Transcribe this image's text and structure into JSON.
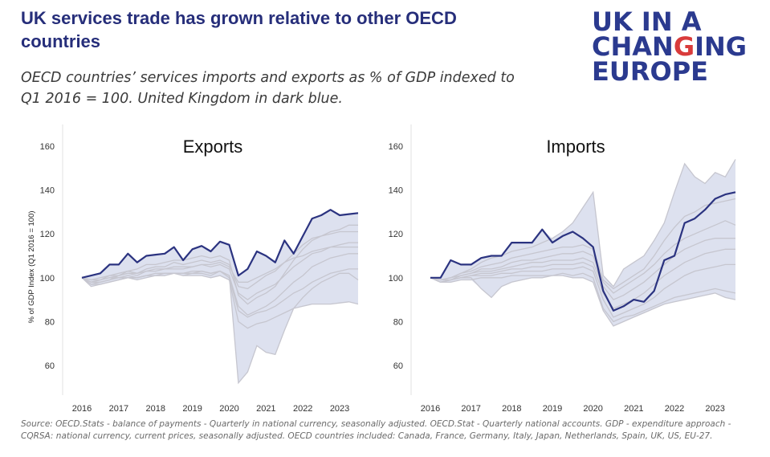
{
  "header": {
    "title": "UK services trade has grown relative to other OECD countries",
    "subtitle": "OECD countries’ services imports and exports as % of GDP indexed to Q1 2016 = 100. United Kingdom in dark blue."
  },
  "logo": {
    "lines": [
      "UK IN A",
      "CHANGING",
      "EUROPE"
    ],
    "highlight_letters": "G",
    "color": "#2b3a8f",
    "highlight_color": "#d93b3b"
  },
  "colors": {
    "uk_line": "#2b3380",
    "band_fill": "#dde1ef",
    "other_lines": "#c6c6cf",
    "axis_text": "#333333"
  },
  "footer": {
    "source": "Source: OECD.Stats - balance of payments - Quarterly in national currency,  seasonally adjusted. OECD.Stat - Quarterly national accounts. GDP - expenditure approach - CQRSA: national currency, current prices, seasonally adjusted.  OECD countries included: Canada, France, Germany, Italy, Japan, Netherlands, Spain, UK, US, EU-27."
  },
  "chart_data": [
    {
      "type": "line",
      "title": "Exports",
      "ylabel": "% of GDP Index (Q1 2016 = 100)",
      "xlabel": "",
      "ylim": [
        50,
        163
      ],
      "yticks": [
        60,
        80,
        100,
        120,
        140,
        160
      ],
      "xticks": [
        "2016",
        "2017",
        "2018",
        "2019",
        "2020",
        "2021",
        "2022",
        "2023"
      ],
      "x": [
        2016.0,
        2016.25,
        2016.5,
        2016.75,
        2017.0,
        2017.25,
        2017.5,
        2017.75,
        2018.0,
        2018.25,
        2018.5,
        2018.75,
        2019.0,
        2019.25,
        2019.5,
        2019.75,
        2020.0,
        2020.25,
        2020.5,
        2020.75,
        2021.0,
        2021.25,
        2021.5,
        2021.75,
        2022.0,
        2022.25,
        2022.5,
        2022.75,
        2023.0,
        2023.25,
        2023.5
      ],
      "series": [
        {
          "values": [
            100,
            101,
            102,
            106,
            106,
            111,
            107,
            110,
            110.5,
            111,
            114,
            108,
            113,
            114.5,
            112,
            116.5,
            115,
            101,
            104,
            112,
            110,
            107,
            117,
            111,
            119,
            127,
            128.5,
            131,
            128.5,
            129,
            129.5
          ],
          "role": "uk"
        },
        {
          "values": [
            100,
            97,
            98,
            99,
            101,
            103,
            104,
            106,
            106,
            107,
            108,
            108,
            109,
            110,
            109,
            110,
            108,
            92,
            88,
            91,
            93,
            96,
            102,
            108,
            113,
            117,
            119,
            121,
            122,
            124,
            124
          ]
        },
        {
          "values": [
            100,
            98,
            99,
            101,
            102,
            103,
            102,
            104,
            105,
            105,
            107,
            106,
            107,
            108,
            107,
            108,
            106,
            96,
            95,
            98,
            101,
            103,
            107,
            111,
            115,
            118,
            119,
            120,
            121,
            121,
            121
          ]
        },
        {
          "values": [
            100,
            99,
            100,
            101,
            101,
            102,
            101,
            103,
            103,
            104,
            104,
            104,
            105,
            106,
            105,
            106,
            104,
            93,
            90,
            93,
            95,
            97,
            101,
            105,
            108,
            111,
            112,
            114,
            115,
            116,
            116
          ]
        },
        {
          "values": [
            100,
            97,
            97,
            98,
            99,
            100,
            99,
            100,
            101,
            101,
            102,
            101,
            102,
            102,
            101,
            103,
            101,
            87,
            83,
            85,
            87,
            90,
            94,
            98,
            101,
            105,
            107,
            109,
            110,
            111,
            111
          ]
        },
        {
          "values": [
            100,
            98,
            99,
            100,
            101,
            102,
            102,
            103,
            104,
            104,
            105,
            105,
            105,
            106,
            106,
            107,
            105,
            98,
            98,
            100,
            102,
            104,
            107,
            109,
            110,
            112,
            113,
            114,
            114,
            114,
            114
          ]
        },
        {
          "values": [
            100,
            99,
            99,
            100,
            100,
            101,
            100,
            101,
            101,
            102,
            102,
            102,
            102,
            103,
            102,
            103,
            100,
            85,
            82,
            84,
            85,
            87,
            90,
            93,
            95,
            98,
            100,
            102,
            103,
            104,
            104
          ]
        },
        {
          "values": [
            100,
            98,
            98,
            99,
            100,
            100,
            100,
            101,
            101,
            101,
            102,
            101,
            101,
            101,
            100,
            101,
            99,
            80,
            77,
            79,
            80,
            82,
            84,
            86,
            87,
            88,
            88,
            88,
            88.5,
            89,
            88
          ]
        },
        {
          "values": [
            100,
            96,
            97,
            98,
            99,
            100,
            100,
            101,
            102,
            102,
            102,
            102,
            103,
            103,
            102,
            103,
            101,
            52,
            57,
            69,
            66,
            65,
            76,
            86,
            91,
            95,
            98,
            100,
            102,
            102,
            99
          ]
        }
      ]
    },
    {
      "type": "line",
      "title": "Imports",
      "ylabel": "",
      "xlabel": "",
      "ylim": [
        50,
        163
      ],
      "yticks": [
        60,
        80,
        100,
        120,
        140,
        160
      ],
      "xticks": [
        "2016",
        "2017",
        "2018",
        "2019",
        "2020",
        "2021",
        "2022",
        "2023"
      ],
      "x": [
        2016.0,
        2016.25,
        2016.5,
        2016.75,
        2017.0,
        2017.25,
        2017.5,
        2017.75,
        2018.0,
        2018.25,
        2018.5,
        2018.75,
        2019.0,
        2019.25,
        2019.5,
        2019.75,
        2020.0,
        2020.25,
        2020.5,
        2020.75,
        2021.0,
        2021.25,
        2021.5,
        2021.75,
        2022.0,
        2022.25,
        2022.5,
        2022.75,
        2023.0,
        2023.25,
        2023.5
      ],
      "series": [
        {
          "values": [
            100,
            100,
            108,
            106,
            106,
            109,
            110,
            110,
            116,
            116,
            116,
            122,
            116,
            119,
            121,
            118,
            114,
            94,
            85,
            87,
            90,
            89,
            94,
            108,
            110,
            125,
            127,
            131,
            136,
            138,
            139
          ],
          "role": "uk"
        },
        {
          "values": [
            100,
            99,
            100,
            102,
            103,
            105,
            106,
            107,
            109,
            110,
            111,
            112,
            113,
            114,
            114,
            115,
            113,
            99,
            95,
            98,
            101,
            104,
            110,
            117,
            123,
            128,
            130,
            133,
            134,
            135,
            136
          ]
        },
        {
          "values": [
            100,
            98,
            99,
            101,
            102,
            104,
            104,
            105,
            107,
            108,
            108,
            109,
            110,
            111,
            111,
            112,
            110,
            98,
            93,
            96,
            99,
            102,
            106,
            111,
            115,
            118,
            120,
            122,
            124,
            126,
            124
          ]
        },
        {
          "values": [
            100,
            99,
            100,
            101,
            102,
            103,
            103,
            104,
            105,
            106,
            107,
            107,
            108,
            108,
            108,
            109,
            107,
            96,
            90,
            92,
            95,
            98,
            102,
            106,
            110,
            113,
            115,
            117,
            118,
            118,
            118
          ]
        },
        {
          "values": [
            100,
            98,
            99,
            100,
            101,
            102,
            102,
            103,
            104,
            104,
            105,
            105,
            106,
            106,
            106,
            107,
            105,
            93,
            86,
            88,
            90,
            93,
            97,
            101,
            104,
            107,
            109,
            111,
            112,
            113,
            113
          ]
        },
        {
          "values": [
            100,
            99,
            99,
            100,
            101,
            101,
            101,
            102,
            102,
            103,
            103,
            103,
            104,
            104,
            104,
            105,
            103,
            90,
            82,
            84,
            86,
            88,
            91,
            95,
            98,
            101,
            103,
            104,
            105,
            106,
            106
          ]
        },
        {
          "values": [
            100,
            98,
            98,
            99,
            99,
            100,
            100,
            100,
            101,
            101,
            101,
            101,
            101,
            102,
            101,
            102,
            100,
            86,
            80,
            82,
            83,
            85,
            87,
            89,
            91,
            92,
            93,
            94,
            95,
            94,
            93
          ]
        },
        {
          "values": [
            100,
            98,
            99,
            100,
            100,
            95,
            91,
            96,
            98,
            99,
            100,
            100,
            101,
            101,
            100,
            100,
            98,
            85,
            78,
            80,
            82,
            84,
            86,
            88,
            89,
            90,
            91,
            92,
            93,
            91,
            90
          ]
        },
        {
          "values": [
            100,
            99,
            100,
            102,
            104,
            107,
            109,
            110,
            112,
            113,
            114,
            116,
            118,
            121,
            125,
            132,
            139,
            101,
            96,
            104,
            107,
            110,
            117,
            125,
            139,
            152,
            146,
            143,
            148,
            146,
            154
          ]
        }
      ]
    }
  ]
}
